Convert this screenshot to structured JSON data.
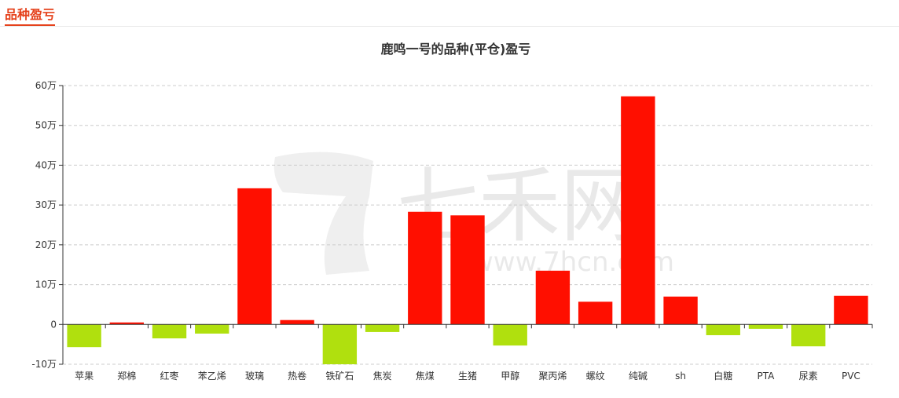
{
  "section": {
    "title": "品种盈亏"
  },
  "watermark": {
    "brand": "七禾网",
    "url": "www.7hcn.com"
  },
  "colors": {
    "gain": "#ff0f00",
    "loss": "#b0e00e",
    "accent": "#e5421c"
  },
  "chart_data": {
    "type": "bar",
    "title": "鹿鸣一号的品种(平仓)盈亏",
    "xlabel": "",
    "ylabel": "",
    "ylim": [
      -100000,
      600000
    ],
    "yticks": [
      -100000,
      0,
      100000,
      200000,
      300000,
      400000,
      500000,
      600000
    ],
    "ytick_labels": [
      "-10万",
      "0",
      "10万",
      "20万",
      "30万",
      "40万",
      "50万",
      "60万"
    ],
    "grid": true,
    "categories": [
      "苹果",
      "郑棉",
      "红枣",
      "苯乙烯",
      "玻璃",
      "热卷",
      "铁矿石",
      "焦炭",
      "焦煤",
      "生猪",
      "甲醇",
      "聚丙烯",
      "螺纹",
      "纯碱",
      "sh",
      "白糖",
      "PTA",
      "尿素",
      "PVC"
    ],
    "values": [
      -57000,
      5000,
      -35000,
      -23000,
      342000,
      11000,
      -100000,
      -19000,
      283000,
      274000,
      -53000,
      135000,
      57000,
      573000,
      70000,
      -27000,
      -11000,
      -55000,
      72000
    ]
  }
}
